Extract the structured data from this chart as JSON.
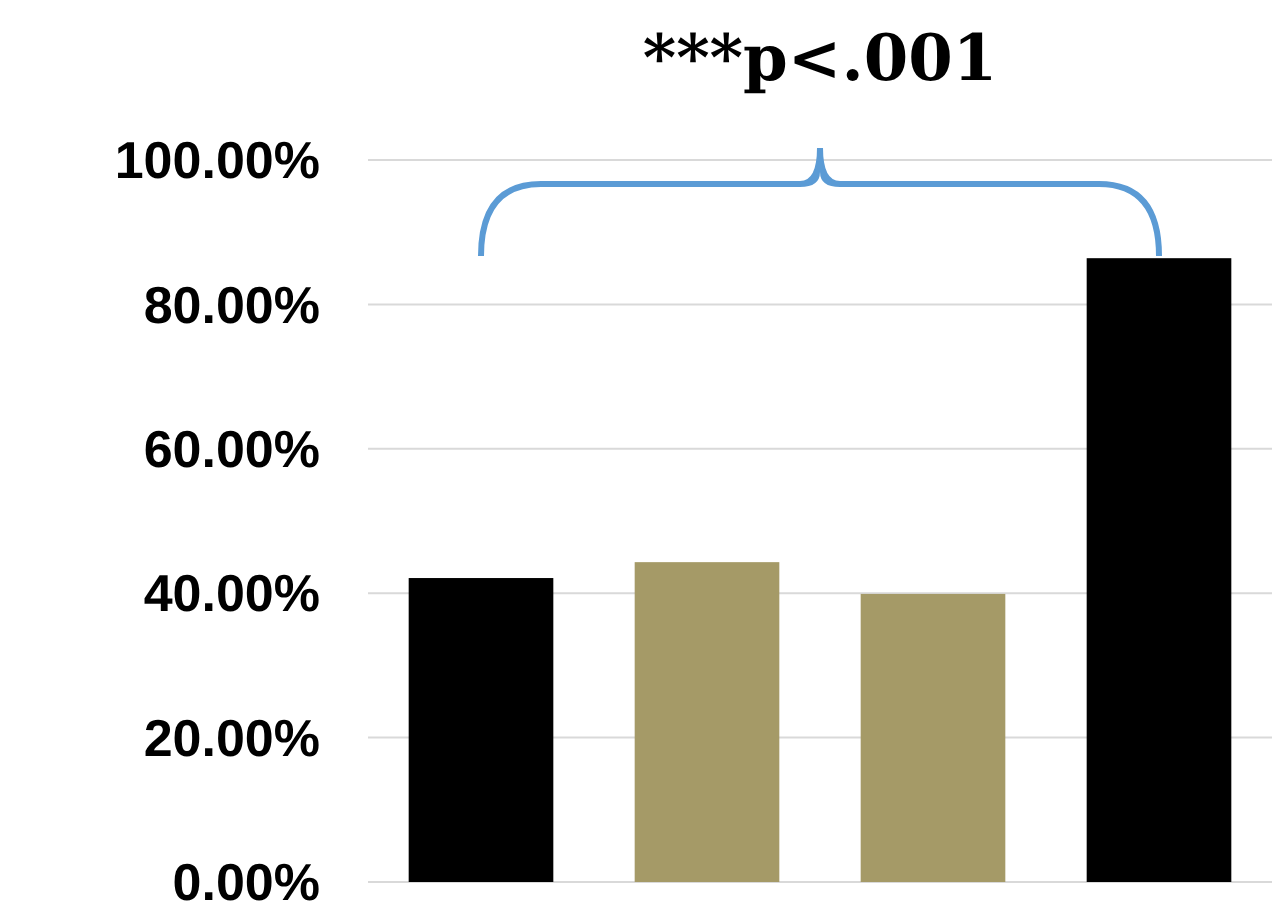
{
  "chart_data": {
    "type": "bar",
    "categories": [
      null,
      null,
      null,
      null
    ],
    "values": [
      42.1,
      44.3,
      39.9,
      86.4
    ],
    "colors": [
      "#000000",
      "#a59a67",
      "#a59a67",
      "#000000"
    ],
    "ylim": [
      0,
      100
    ],
    "yticks": [
      {
        "value": 0,
        "label": "0.00%"
      },
      {
        "value": 20,
        "label": "20.00%"
      },
      {
        "value": 40,
        "label": "40.00%"
      },
      {
        "value": 60,
        "label": "60.00%"
      },
      {
        "value": 80,
        "label": "80.00%"
      },
      {
        "value": 100,
        "label": "100.00%"
      }
    ],
    "grid": "y",
    "tick_labels": "y",
    "annotations": [
      "***p<.001"
    ]
  }
}
